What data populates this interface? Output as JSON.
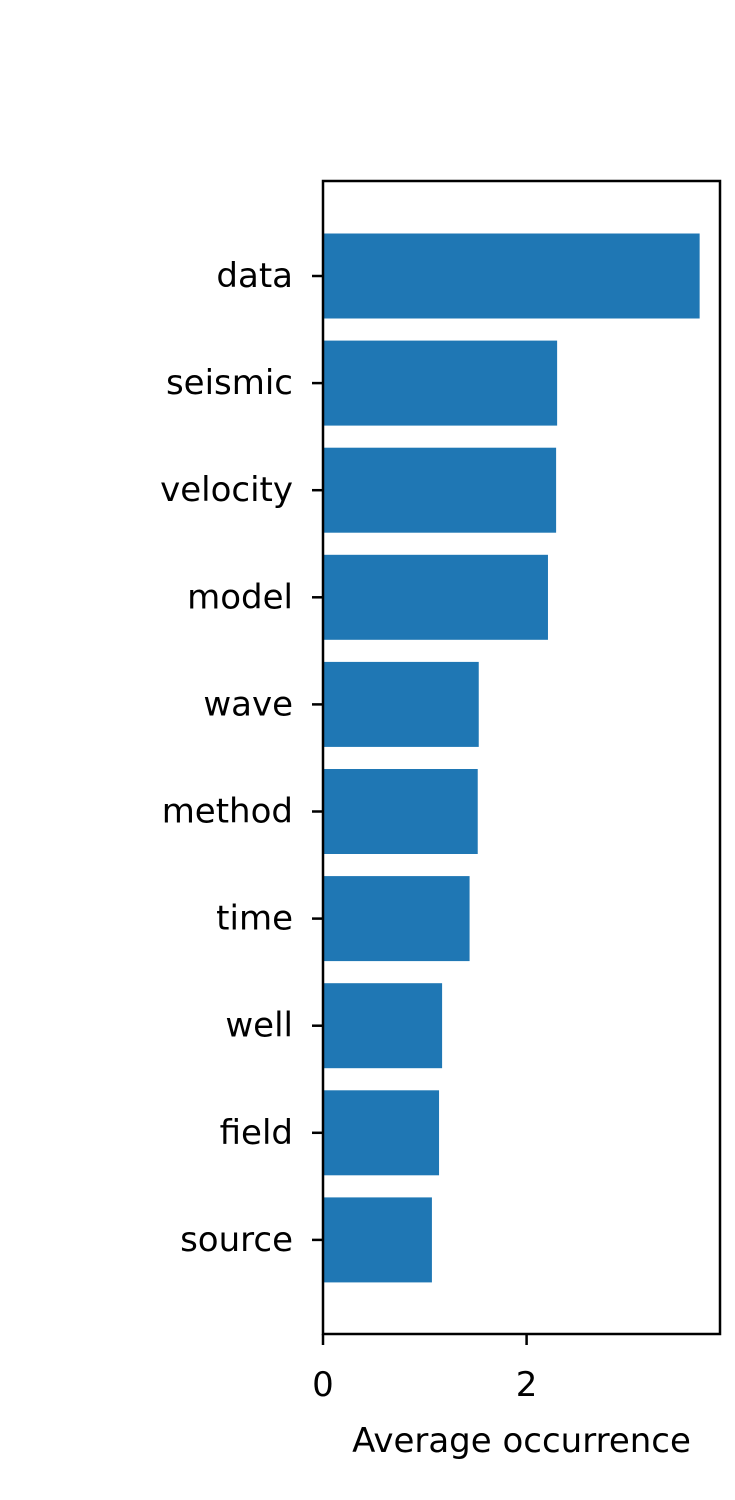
{
  "chart_data": {
    "type": "bar",
    "orientation": "horizontal",
    "categories": [
      "data",
      "seismic",
      "velocity",
      "model",
      "wave",
      "method",
      "time",
      "well",
      "field",
      "source"
    ],
    "values": [
      3.7,
      2.3,
      2.29,
      2.21,
      1.53,
      1.52,
      1.44,
      1.17,
      1.14,
      1.07
    ],
    "title": "",
    "xlabel": "Average occurrence",
    "ylabel": "",
    "xlim": [
      0,
      3.9
    ],
    "xticks": [
      0,
      2
    ],
    "xtick_labels": [
      "0",
      "2"
    ],
    "bar_color": "#1f77b4"
  }
}
